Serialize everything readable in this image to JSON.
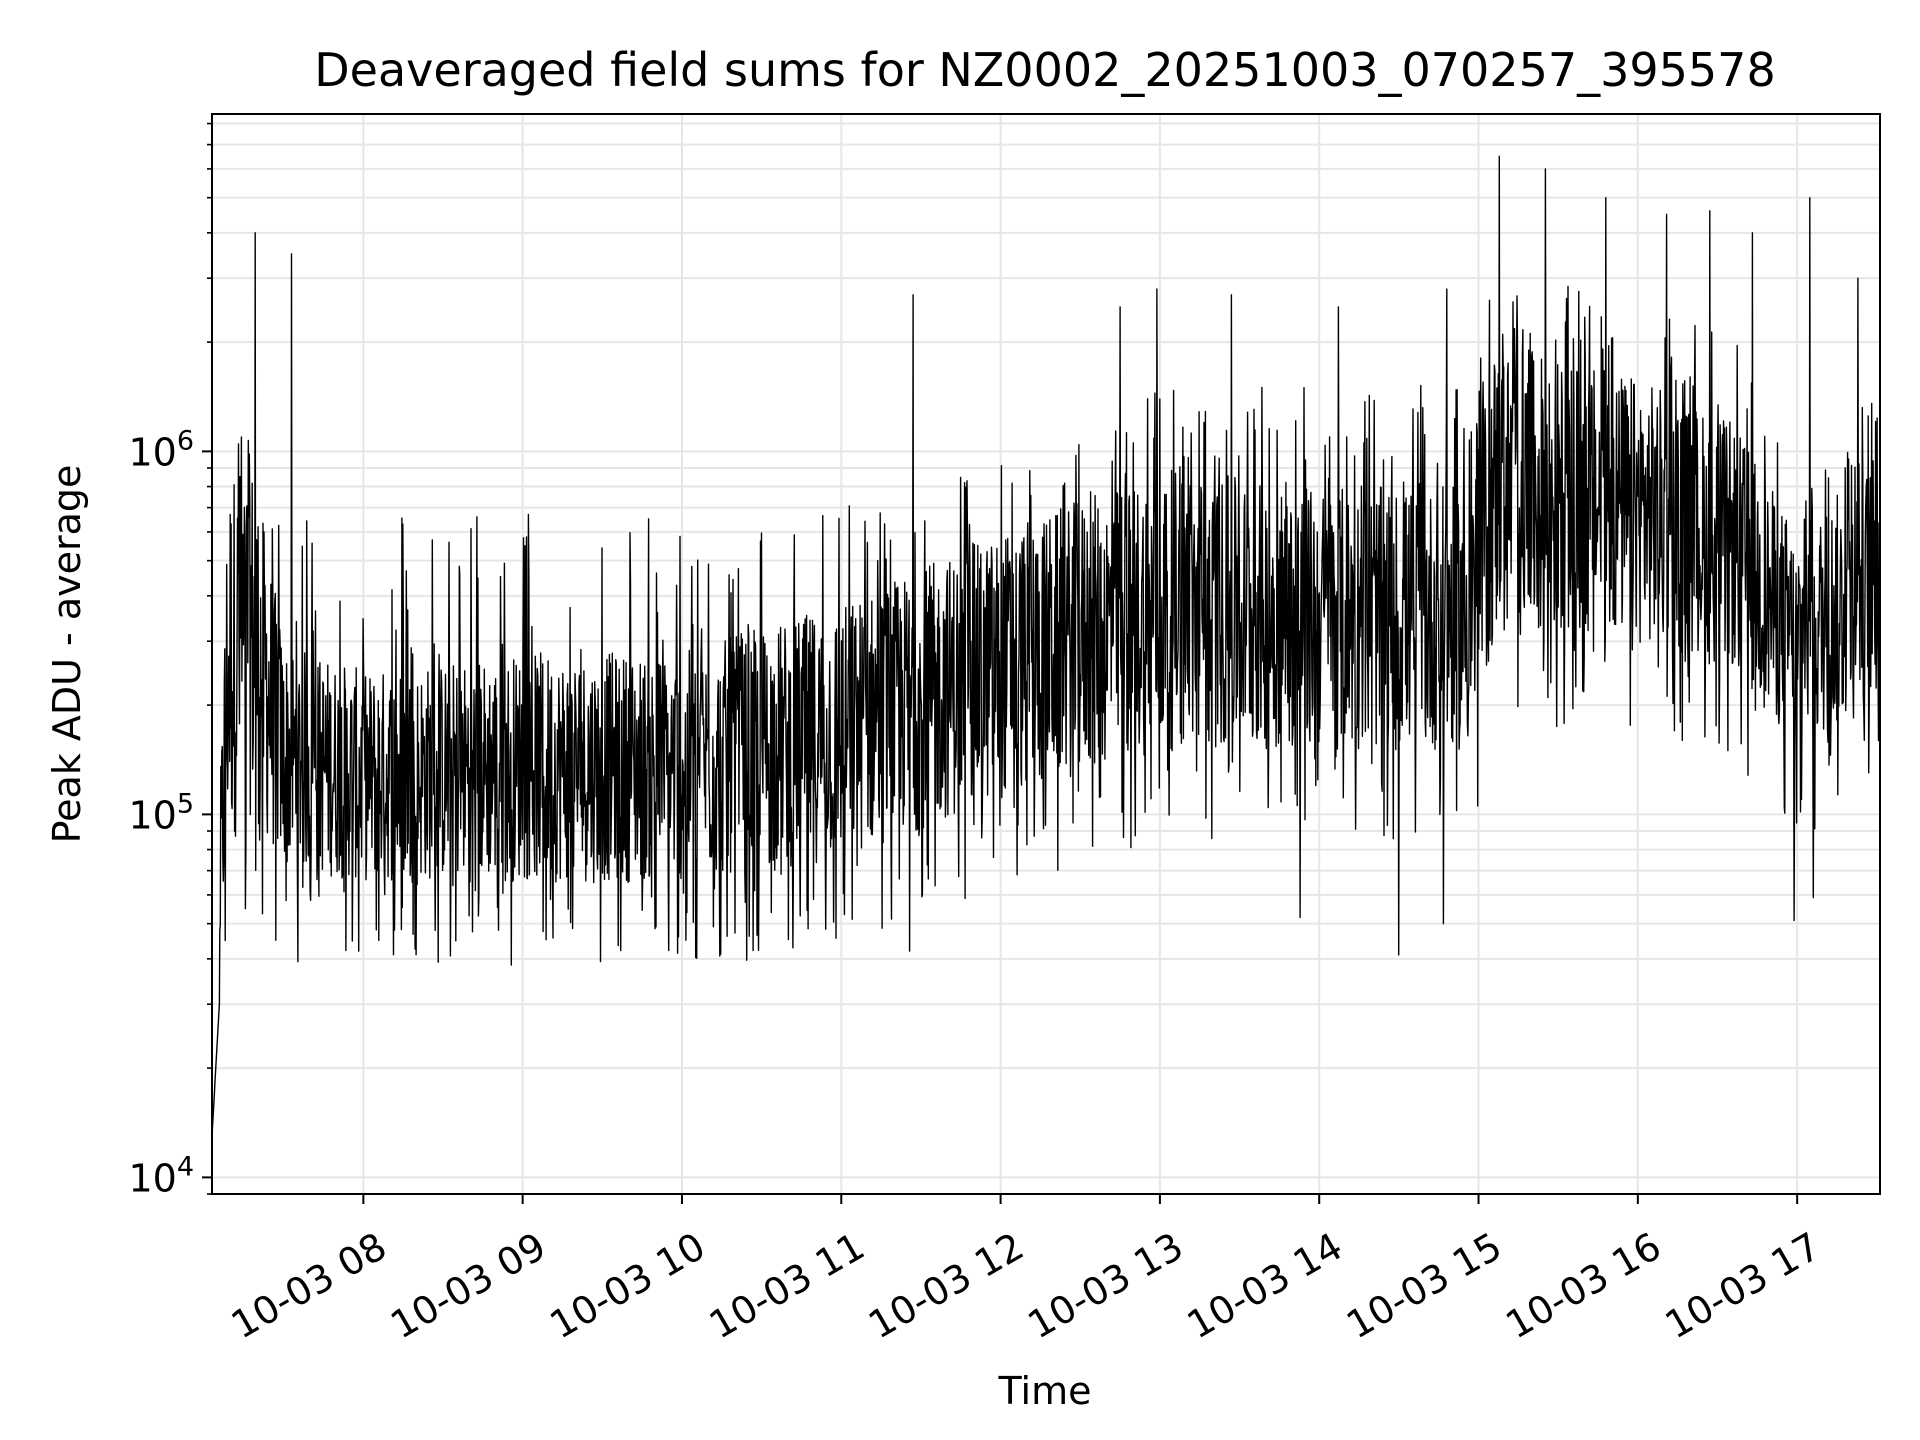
{
  "chart_data": {
    "type": "line",
    "title": "Deaveraged field sums for NZ0002_20251003_070257_395578",
    "xlabel": "Time",
    "ylabel": "Peak ADU - average",
    "yscale": "log",
    "ylim": [
      9000,
      8500000
    ],
    "xlim_hours": [
      7.05,
      17.52
    ],
    "grid": true,
    "grid_minor": true,
    "legend": "none",
    "x_ticks": [
      {
        "value": 8,
        "label": "10-03 08"
      },
      {
        "value": 9,
        "label": "10-03 09"
      },
      {
        "value": 10,
        "label": "10-03 10"
      },
      {
        "value": 11,
        "label": "10-03 11"
      },
      {
        "value": 12,
        "label": "10-03 12"
      },
      {
        "value": 13,
        "label": "10-03 13"
      },
      {
        "value": 14,
        "label": "10-03 14"
      },
      {
        "value": 15,
        "label": "10-03 15"
      },
      {
        "value": 16,
        "label": "10-03 16"
      },
      {
        "value": 17,
        "label": "10-03 17"
      }
    ],
    "y_ticks": [
      {
        "value": 10000,
        "base": "10",
        "exp": "4"
      },
      {
        "value": 100000,
        "base": "10",
        "exp": "5"
      },
      {
        "value": 1000000,
        "base": "10",
        "exp": "6"
      }
    ],
    "series": [
      {
        "name": "Peak ADU - average",
        "color": "#000000",
        "band_profile": [
          {
            "t": 7.05,
            "low": 13000,
            "high": 13000,
            "spikes": 13000
          },
          {
            "t": 7.15,
            "low": 80000,
            "high": 900000,
            "spikes": 1000000
          },
          {
            "t": 7.3,
            "low": 100000,
            "high": 1000000,
            "spikes": 1300000
          },
          {
            "t": 7.5,
            "low": 70000,
            "high": 300000,
            "spikes": 700000
          },
          {
            "t": 8.0,
            "low": 65000,
            "high": 250000,
            "spikes": 650000
          },
          {
            "t": 9.0,
            "low": 65000,
            "high": 280000,
            "spikes": 650000
          },
          {
            "t": 10.0,
            "low": 65000,
            "high": 280000,
            "spikes": 600000
          },
          {
            "t": 11.0,
            "low": 75000,
            "high": 380000,
            "spikes": 700000
          },
          {
            "t": 12.0,
            "low": 110000,
            "high": 600000,
            "spikes": 900000
          },
          {
            "t": 13.0,
            "low": 150000,
            "high": 900000,
            "spikes": 1500000
          },
          {
            "t": 14.0,
            "low": 150000,
            "high": 800000,
            "spikes": 1500000
          },
          {
            "t": 14.95,
            "low": 150000,
            "high": 800000,
            "spikes": 1400000
          },
          {
            "t": 15.1,
            "low": 300000,
            "high": 2000000,
            "spikes": 3000000
          },
          {
            "t": 16.0,
            "low": 300000,
            "high": 1600000,
            "spikes": 2500000
          },
          {
            "t": 16.6,
            "low": 250000,
            "high": 1200000,
            "spikes": 2000000
          },
          {
            "t": 17.0,
            "low": 150000,
            "high": 600000,
            "spikes": 800000
          },
          {
            "t": 17.52,
            "low": 200000,
            "high": 1000000,
            "spikes": 1500000
          }
        ],
        "notable_spikes": [
          {
            "t": 7.32,
            "value": 4000000
          },
          {
            "t": 7.55,
            "value": 3500000
          },
          {
            "t": 11.45,
            "value": 2700000
          },
          {
            "t": 12.75,
            "value": 2500000
          },
          {
            "t": 12.98,
            "value": 2800000
          },
          {
            "t": 13.45,
            "value": 2700000
          },
          {
            "t": 14.12,
            "value": 2500000
          },
          {
            "t": 14.8,
            "value": 2800000
          },
          {
            "t": 15.13,
            "value": 6500000
          },
          {
            "t": 15.42,
            "value": 6000000
          },
          {
            "t": 15.8,
            "value": 5000000
          },
          {
            "t": 16.18,
            "value": 4500000
          },
          {
            "t": 16.45,
            "value": 4600000
          },
          {
            "t": 16.72,
            "value": 4000000
          },
          {
            "t": 17.08,
            "value": 5000000
          },
          {
            "t": 17.38,
            "value": 3000000
          }
        ],
        "notable_dips": [
          {
            "t": 7.1,
            "value": 48000
          },
          {
            "t": 7.45,
            "value": 45000
          },
          {
            "t": 7.97,
            "value": 42000
          },
          {
            "t": 9.98,
            "value": 46000
          },
          {
            "t": 11.43,
            "value": 42000
          },
          {
            "t": 13.88,
            "value": 52000
          },
          {
            "t": 14.5,
            "value": 41000
          },
          {
            "t": 14.78,
            "value": 50000
          },
          {
            "t": 16.98,
            "value": 51000
          },
          {
            "t": 17.1,
            "value": 59000
          }
        ]
      }
    ]
  }
}
